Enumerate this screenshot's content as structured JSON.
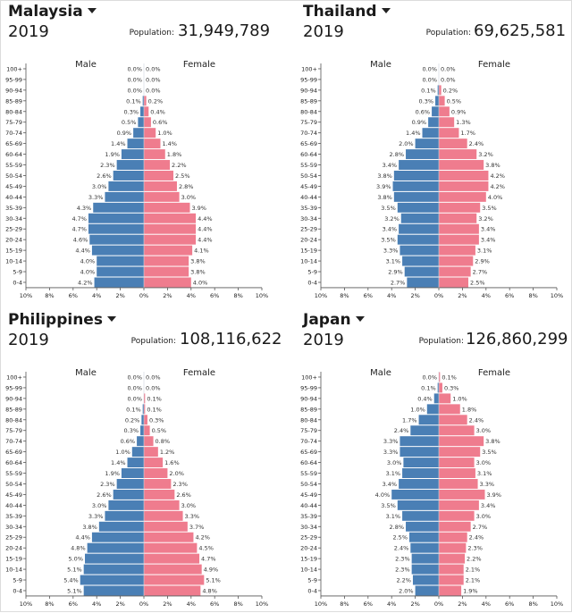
{
  "chart_data": [
    {
      "type": "bar",
      "country": "Malaysia",
      "year": "2019",
      "population_label": "Population:",
      "population": "31,949,789",
      "male_label": "Male",
      "female_label": "Female",
      "categories": [
        "100+",
        "95-99",
        "90-94",
        "85-89",
        "80-84",
        "75-79",
        "70-74",
        "65-69",
        "60-64",
        "55-59",
        "50-54",
        "45-49",
        "40-44",
        "35-39",
        "30-34",
        "25-29",
        "20-24",
        "15-19",
        "10-14",
        "5-9",
        "0-4"
      ],
      "series": [
        {
          "name": "Male",
          "color": "#4a7fb5",
          "values": [
            0.0,
            0.0,
            0.0,
            0.1,
            0.3,
            0.5,
            0.9,
            1.4,
            1.9,
            2.3,
            2.6,
            3.0,
            3.3,
            4.3,
            4.7,
            4.7,
            4.6,
            4.4,
            4.0,
            4.0,
            4.2
          ]
        },
        {
          "name": "Female",
          "color": "#ef7c8e",
          "values": [
            0.0,
            0.0,
            0.0,
            0.2,
            0.4,
            0.6,
            1.0,
            1.4,
            1.8,
            2.2,
            2.5,
            2.8,
            3.0,
            3.9,
            4.4,
            4.4,
            4.4,
            4.1,
            3.8,
            3.8,
            4.0
          ]
        }
      ],
      "x_ticks": [
        "10%",
        "8%",
        "6%",
        "4%",
        "2%",
        "0%",
        "2%",
        "4%",
        "6%",
        "8%",
        "10%"
      ],
      "xlim": [
        -10,
        10
      ]
    },
    {
      "type": "bar",
      "country": "Thailand",
      "year": "2019",
      "population_label": "Population:",
      "population": "69,625,581",
      "male_label": "Male",
      "female_label": "Female",
      "categories": [
        "100+",
        "95-99",
        "90-94",
        "85-89",
        "80-84",
        "75-79",
        "70-74",
        "65-69",
        "60-64",
        "55-59",
        "50-54",
        "45-49",
        "40-44",
        "35-39",
        "30-34",
        "25-29",
        "20-24",
        "15-19",
        "10-14",
        "5-9",
        "0-4"
      ],
      "series": [
        {
          "name": "Male",
          "color": "#4a7fb5",
          "values": [
            0.0,
            0.0,
            0.1,
            0.3,
            0.6,
            0.9,
            1.4,
            2.0,
            2.8,
            3.4,
            3.8,
            3.9,
            3.8,
            3.5,
            3.2,
            3.4,
            3.5,
            3.3,
            3.1,
            2.9,
            2.7
          ]
        },
        {
          "name": "Female",
          "color": "#ef7c8e",
          "values": [
            0.0,
            0.0,
            0.2,
            0.5,
            0.9,
            1.3,
            1.7,
            2.4,
            3.2,
            3.8,
            4.2,
            4.2,
            4.0,
            3.5,
            3.2,
            3.4,
            3.4,
            3.1,
            2.9,
            2.7,
            2.5
          ]
        }
      ],
      "x_ticks": [
        "10%",
        "8%",
        "6%",
        "4%",
        "2%",
        "0%",
        "2%",
        "4%",
        "6%",
        "8%",
        "10%"
      ],
      "xlim": [
        -10,
        10
      ]
    },
    {
      "type": "bar",
      "country": "Philippines",
      "year": "2019",
      "population_label": "Population:",
      "population": "108,116,622",
      "male_label": "Male",
      "female_label": "Female",
      "categories": [
        "100+",
        "95-99",
        "90-94",
        "85-89",
        "80-84",
        "75-79",
        "70-74",
        "65-69",
        "60-64",
        "55-59",
        "50-54",
        "45-49",
        "40-44",
        "35-39",
        "30-34",
        "25-29",
        "20-24",
        "15-19",
        "10-14",
        "5-9",
        "0-4"
      ],
      "series": [
        {
          "name": "Male",
          "color": "#4a7fb5",
          "values": [
            0.0,
            0.0,
            0.0,
            0.1,
            0.2,
            0.3,
            0.6,
            1.0,
            1.4,
            1.9,
            2.3,
            2.6,
            3.0,
            3.3,
            3.8,
            4.4,
            4.8,
            5.0,
            5.1,
            5.4,
            5.1
          ]
        },
        {
          "name": "Female",
          "color": "#ef7c8e",
          "values": [
            0.0,
            0.0,
            0.1,
            0.1,
            0.3,
            0.5,
            0.8,
            1.2,
            1.6,
            2.0,
            2.3,
            2.6,
            3.0,
            3.3,
            3.7,
            4.2,
            4.5,
            4.7,
            4.9,
            5.1,
            4.8
          ]
        }
      ],
      "x_ticks": [
        "10%",
        "8%",
        "6%",
        "4%",
        "2%",
        "0%",
        "2%",
        "4%",
        "6%",
        "8%",
        "10%"
      ],
      "xlim": [
        -10,
        10
      ]
    },
    {
      "type": "bar",
      "country": "Japan",
      "year": "2019",
      "population_label": "Population:",
      "population": "126,860,299",
      "male_label": "Male",
      "female_label": "Female",
      "categories": [
        "100+",
        "95-99",
        "90-94",
        "85-89",
        "80-84",
        "75-79",
        "70-74",
        "65-69",
        "60-64",
        "55-59",
        "50-54",
        "45-49",
        "40-44",
        "35-39",
        "30-34",
        "25-29",
        "20-24",
        "15-19",
        "10-14",
        "5-9",
        "0-4"
      ],
      "series": [
        {
          "name": "Male",
          "color": "#4a7fb5",
          "values": [
            0.0,
            0.1,
            0.4,
            1.0,
            1.7,
            2.4,
            3.3,
            3.3,
            3.0,
            3.1,
            3.4,
            4.0,
            3.5,
            3.1,
            2.8,
            2.5,
            2.4,
            2.3,
            2.3,
            2.2,
            2.0
          ]
        },
        {
          "name": "Female",
          "color": "#ef7c8e",
          "values": [
            0.1,
            0.3,
            1.0,
            1.8,
            2.4,
            3.0,
            3.8,
            3.5,
            3.0,
            3.1,
            3.3,
            3.9,
            3.4,
            3.0,
            2.7,
            2.4,
            2.3,
            2.2,
            2.1,
            2.1,
            1.9
          ]
        }
      ],
      "x_ticks": [
        "10%",
        "8%",
        "6%",
        "4%",
        "2%",
        "0%",
        "2%",
        "4%",
        "6%",
        "8%",
        "10%"
      ],
      "xlim": [
        -10,
        10
      ]
    }
  ]
}
